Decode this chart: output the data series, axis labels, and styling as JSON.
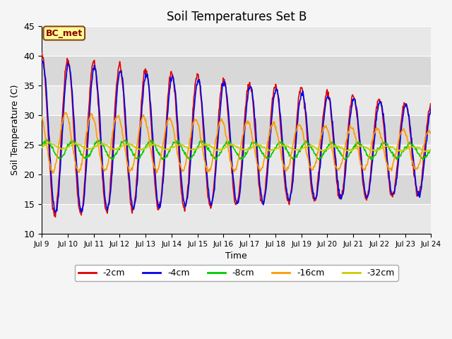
{
  "title": "Soil Temperatures Set B",
  "xlabel": "Time",
  "ylabel": "Soil Temperature (C)",
  "xlim": [
    0,
    15
  ],
  "ylim": [
    10,
    45
  ],
  "yticks": [
    10,
    15,
    20,
    25,
    30,
    35,
    40,
    45
  ],
  "xtick_labels": [
    "Jul 9",
    "Jul 10",
    "Jul 11",
    "Jul 12",
    "Jul 13",
    "Jul 14",
    "Jul 15",
    "Jul 16",
    "Jul 17",
    "Jul 18",
    "Jul 19",
    "Jul 20",
    "Jul 21",
    "Jul 22",
    "Jul 23",
    "Jul 24"
  ],
  "legend_label": "BC_met",
  "series_colors": [
    "#dd0000",
    "#0000ee",
    "#00cc00",
    "#ff9900",
    "#cccc00"
  ],
  "series_labels": [
    "-2cm",
    "-4cm",
    "-8cm",
    "-16cm",
    "-32cm"
  ],
  "figure_bg": "#f5f5f5",
  "band_colors": [
    "#e8e8e8",
    "#d8d8d8"
  ],
  "title_fontsize": 12
}
